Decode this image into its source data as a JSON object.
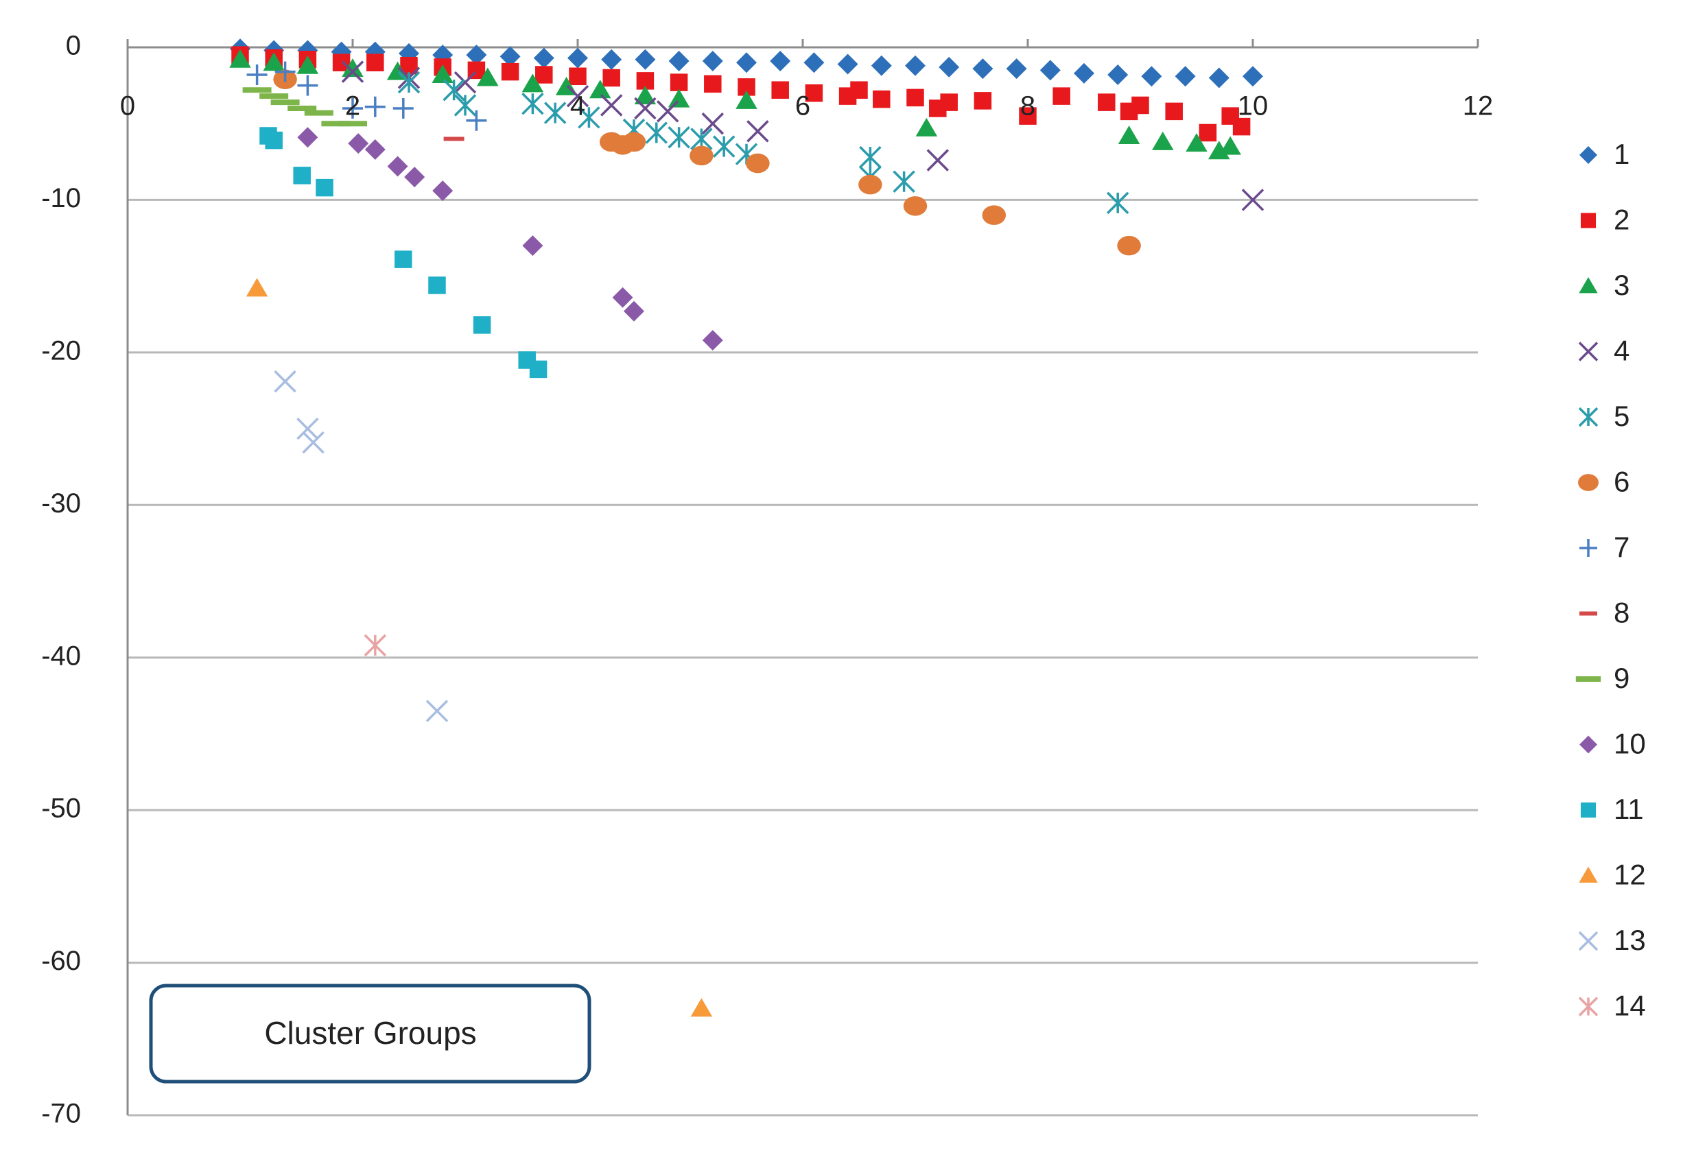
{
  "chart_data": {
    "type": "scatter",
    "annotation": "Cluster Groups",
    "xlim": [
      0,
      12
    ],
    "xticks": [
      0,
      2,
      4,
      6,
      8,
      10,
      12
    ],
    "ylim": [
      -70,
      0
    ],
    "yticks": [
      0,
      -10,
      -20,
      -30,
      -40,
      -50,
      -60,
      -70
    ],
    "grid": true,
    "legend": "right",
    "series": [
      {
        "name": "1",
        "color": "#2e6fba",
        "marker": "diamond",
        "x": [
          1.0,
          1.3,
          1.6,
          1.9,
          2.2,
          2.5,
          2.8,
          3.1,
          3.4,
          3.7,
          4.0,
          4.3,
          4.6,
          4.9,
          5.2,
          5.5,
          5.8,
          6.1,
          6.4,
          6.7,
          7.0,
          7.3,
          7.6,
          7.9,
          8.2,
          8.5,
          8.8,
          9.1,
          9.4,
          9.7,
          10.0
        ],
        "values": [
          -0.1,
          -0.2,
          -0.2,
          -0.3,
          -0.3,
          -0.4,
          -0.5,
          -0.5,
          -0.6,
          -0.7,
          -0.7,
          -0.8,
          -0.8,
          -0.9,
          -0.9,
          -1.0,
          -0.9,
          -1.0,
          -1.1,
          -1.2,
          -1.2,
          -1.3,
          -1.4,
          -1.4,
          -1.5,
          -1.7,
          -1.8,
          -1.9,
          -1.9,
          -2.0,
          -1.9
        ]
      },
      {
        "name": "2",
        "color": "#e8191d",
        "marker": "square",
        "x": [
          1.0,
          1.3,
          1.6,
          1.9,
          2.2,
          2.5,
          2.8,
          3.1,
          3.4,
          3.7,
          4.0,
          4.3,
          4.6,
          4.9,
          5.2,
          5.5,
          5.8,
          6.1,
          6.4,
          6.5,
          6.7,
          7.0,
          7.2,
          7.3,
          7.6,
          8.0,
          8.3,
          8.7,
          8.9,
          9.0,
          9.3,
          9.6,
          9.8,
          9.9
        ],
        "values": [
          -0.5,
          -0.7,
          -0.8,
          -1.0,
          -1.0,
          -1.2,
          -1.3,
          -1.5,
          -1.6,
          -1.8,
          -1.9,
          -2.0,
          -2.2,
          -2.3,
          -2.4,
          -2.6,
          -2.8,
          -3.0,
          -3.2,
          -2.8,
          -3.4,
          -3.3,
          -4.0,
          -3.6,
          -3.5,
          -4.5,
          -3.2,
          -3.6,
          -4.2,
          -3.8,
          -4.2,
          -5.6,
          -4.5,
          -5.2
        ]
      },
      {
        "name": "3",
        "color": "#1aa34a",
        "marker": "triangle",
        "x": [
          1.0,
          1.3,
          1.6,
          2.0,
          2.4,
          2.8,
          3.2,
          3.6,
          3.9,
          4.2,
          4.6,
          4.9,
          5.5,
          7.1,
          8.9,
          9.2,
          9.5,
          9.7,
          9.8
        ],
        "values": [
          -0.8,
          -1.0,
          -1.2,
          -1.4,
          -1.6,
          -1.8,
          -2.0,
          -2.4,
          -2.6,
          -2.8,
          -3.2,
          -3.4,
          -3.5,
          -5.3,
          -5.8,
          -6.2,
          -6.3,
          -6.8,
          -6.5
        ]
      },
      {
        "name": "4",
        "color": "#6a4a8c",
        "marker": "x",
        "x": [
          2.0,
          2.5,
          3.0,
          4.0,
          4.3,
          4.6,
          4.8,
          5.2,
          5.6,
          7.2,
          10.0
        ],
        "values": [
          -1.6,
          -2.0,
          -2.3,
          -3.2,
          -3.8,
          -4.0,
          -4.2,
          -5.0,
          -5.5,
          -7.4,
          -10.0
        ]
      },
      {
        "name": "5",
        "color": "#2b9cab",
        "marker": "asterisk",
        "x": [
          2.5,
          2.9,
          3.0,
          3.6,
          3.8,
          4.1,
          4.5,
          4.7,
          4.9,
          5.1,
          5.3,
          5.5,
          6.6,
          6.6,
          6.9,
          8.8
        ],
        "values": [
          -2.3,
          -2.8,
          -3.8,
          -3.7,
          -4.3,
          -4.6,
          -5.4,
          -5.6,
          -5.9,
          -6.0,
          -6.5,
          -7.0,
          -7.2,
          -8.5,
          -8.8,
          -10.2
        ]
      },
      {
        "name": "6",
        "color": "#e07b39",
        "marker": "circle",
        "x": [
          1.4,
          4.3,
          4.4,
          4.5,
          5.1,
          5.6,
          6.6,
          7.0,
          7.7,
          8.9
        ],
        "values": [
          -2.1,
          -6.2,
          -6.4,
          -6.2,
          -7.1,
          -7.6,
          -9.0,
          -10.4,
          -11.0,
          -13.0
        ]
      },
      {
        "name": "7",
        "color": "#4a7fc4",
        "marker": "plus",
        "x": [
          1.15,
          1.4,
          1.6,
          2.0,
          2.2,
          2.45,
          3.1
        ],
        "values": [
          -1.8,
          -1.6,
          -2.5,
          -4.0,
          -3.9,
          -4.0,
          -4.8
        ]
      },
      {
        "name": "8",
        "color": "#d44a4a",
        "marker": "dash",
        "x": [
          2.9
        ],
        "values": [
          -6.0
        ]
      },
      {
        "name": "9",
        "color": "#7db54a",
        "marker": "bar",
        "x": [
          1.15,
          1.3,
          1.4,
          1.55,
          1.7,
          1.85,
          2.0
        ],
        "values": [
          -2.8,
          -3.2,
          -3.6,
          -4.0,
          -4.3,
          -5.0,
          -5.0
        ]
      },
      {
        "name": "10",
        "color": "#8a5aa8",
        "marker": "diamond",
        "x": [
          1.6,
          2.05,
          2.2,
          2.4,
          2.55,
          2.8,
          3.6,
          4.4,
          4.5,
          5.2
        ],
        "values": [
          -5.9,
          -6.3,
          -6.7,
          -7.8,
          -8.5,
          -9.4,
          -13.0,
          -16.4,
          -17.3,
          -19.2
        ]
      },
      {
        "name": "11",
        "color": "#1fb0c8",
        "marker": "square",
        "x": [
          1.25,
          1.3,
          1.55,
          1.75,
          2.45,
          2.75,
          3.15,
          3.55,
          3.65
        ],
        "values": [
          -5.8,
          -6.1,
          -8.4,
          -9.2,
          -13.9,
          -15.6,
          -18.2,
          -20.5,
          -21.1
        ]
      },
      {
        "name": "12",
        "color": "#f79a3a",
        "marker": "triangle",
        "x": [
          1.15,
          5.1
        ],
        "values": [
          -15.8,
          -63.0
        ]
      },
      {
        "name": "13",
        "color": "#a8bde0",
        "marker": "x",
        "x": [
          1.4,
          1.6,
          1.65,
          2.75
        ],
        "values": [
          -21.9,
          -25.0,
          -25.9,
          -43.5
        ]
      },
      {
        "name": "14",
        "color": "#e8a4a4",
        "marker": "asterisk",
        "x": [
          2.2
        ],
        "values": [
          -39.2
        ]
      }
    ]
  }
}
